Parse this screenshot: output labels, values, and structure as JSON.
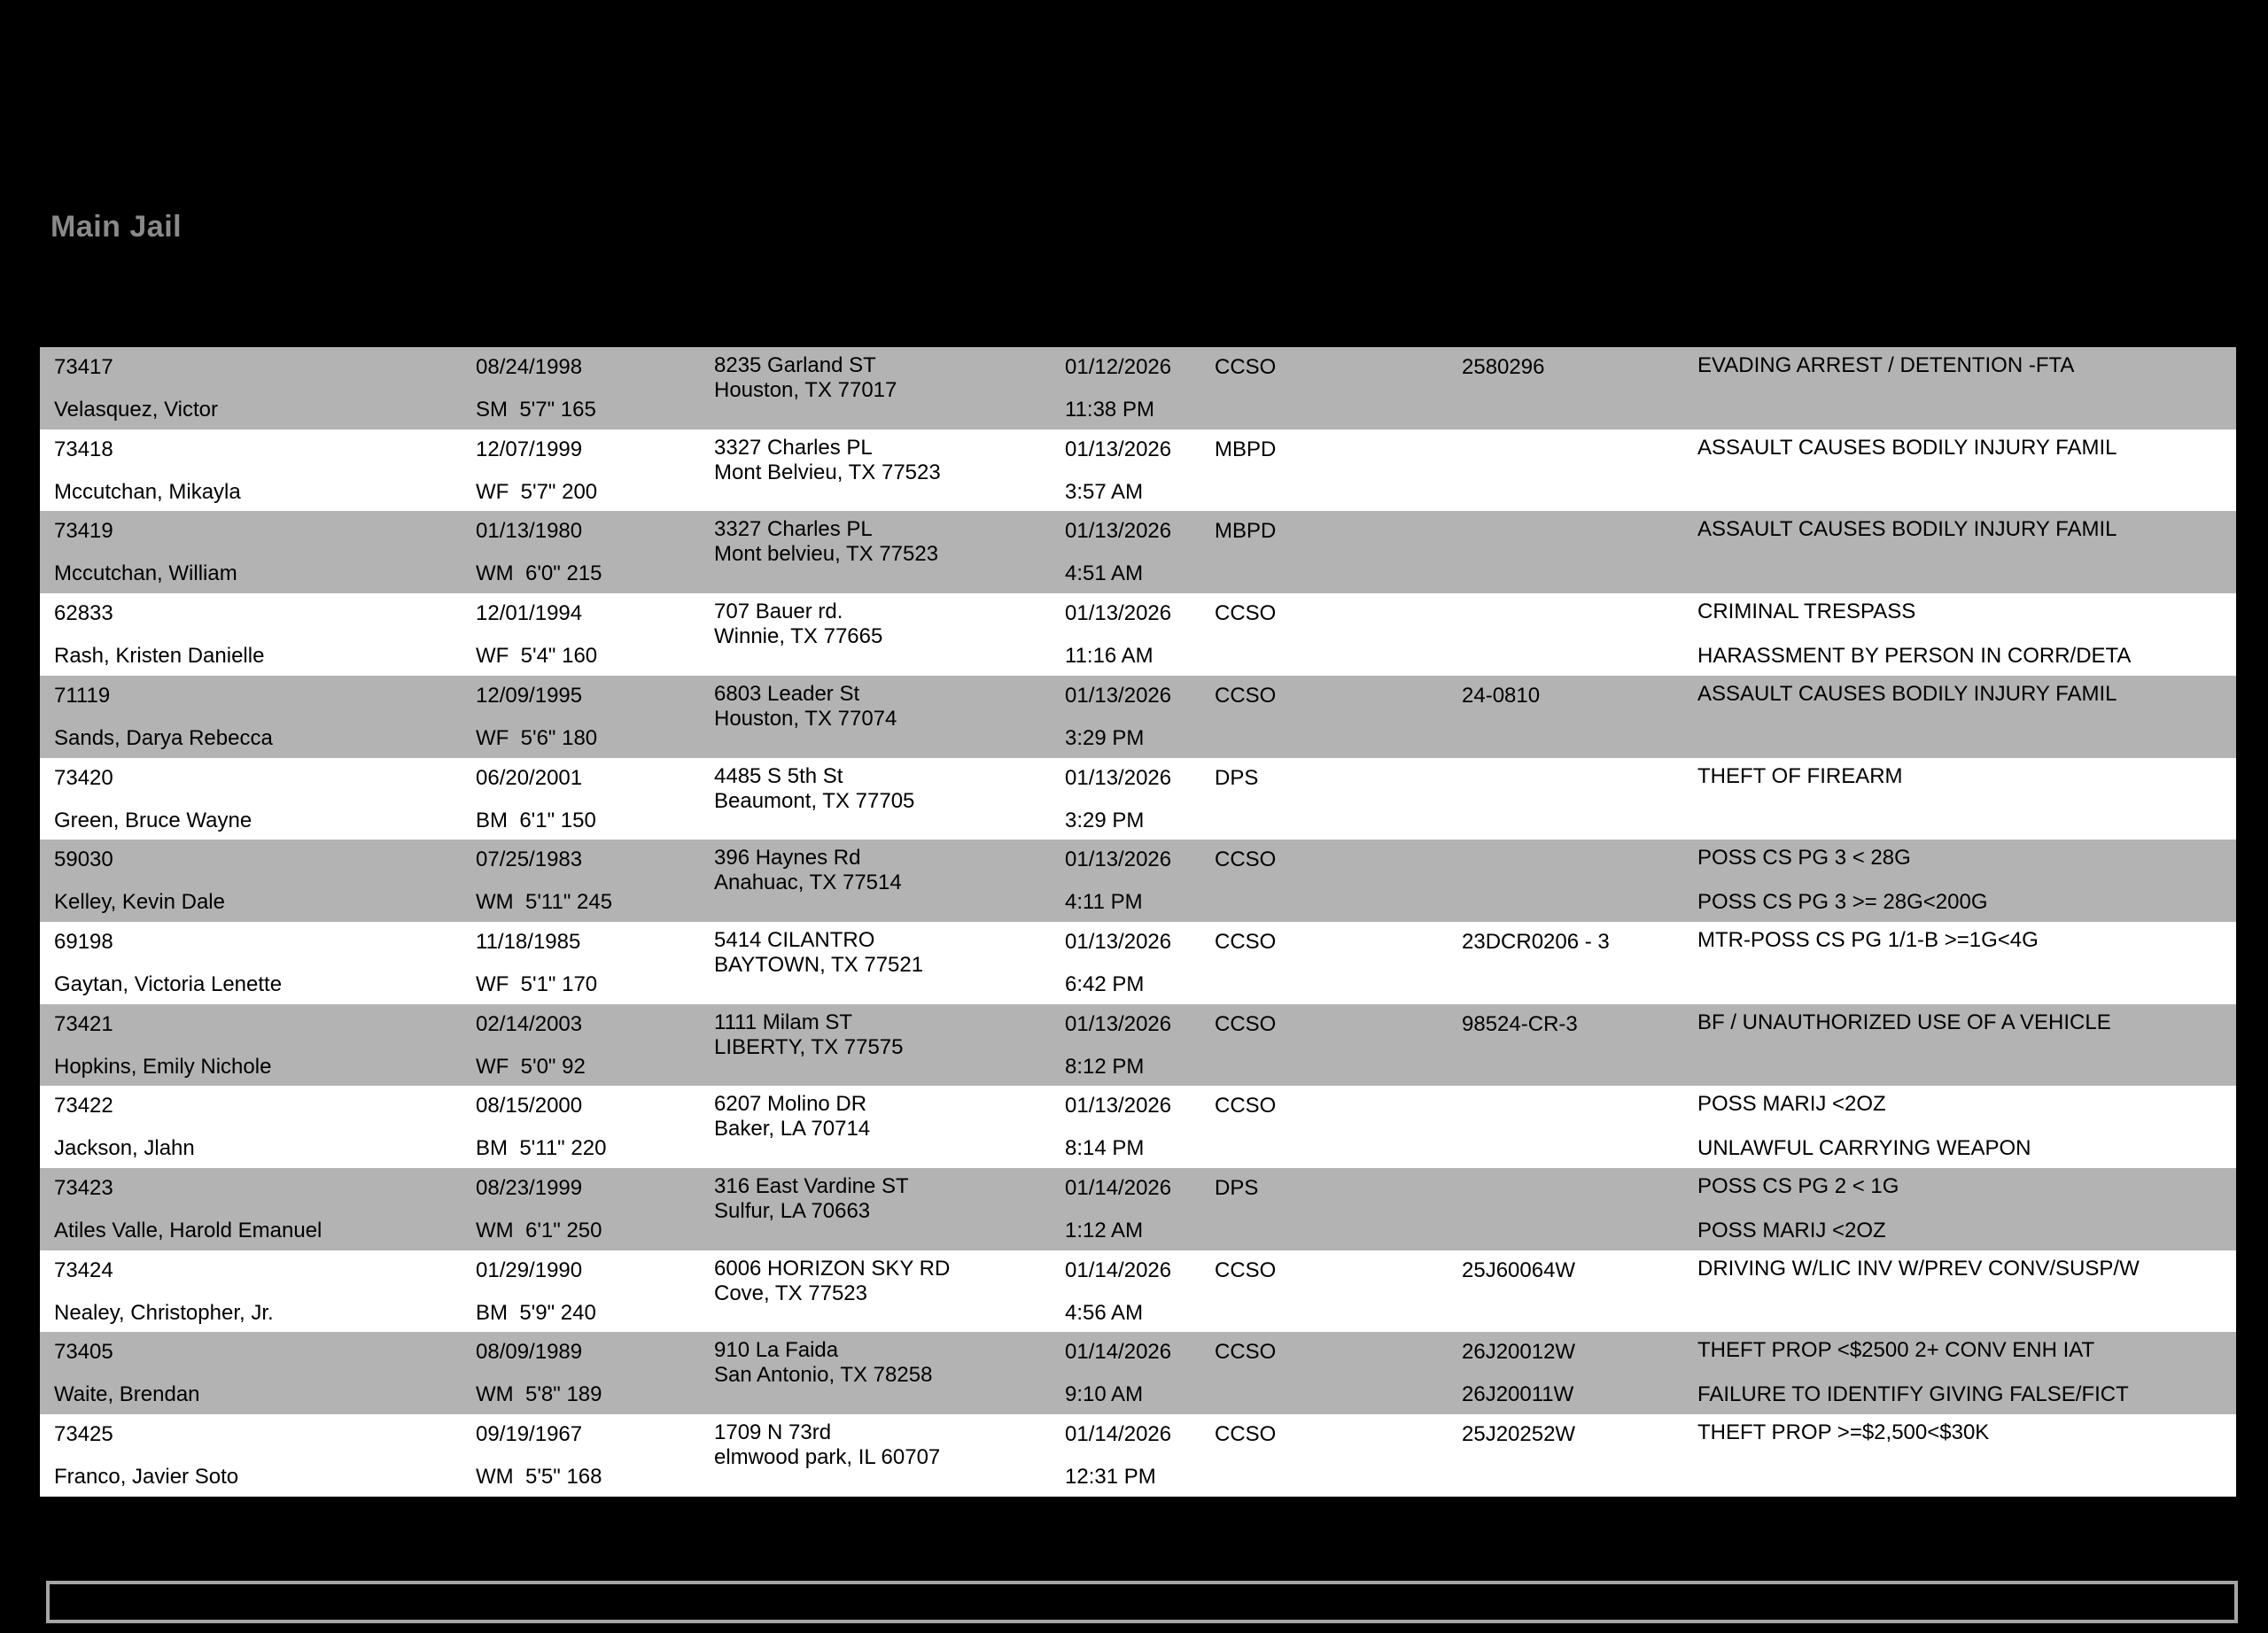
{
  "page": {
    "title": "Main Jail",
    "background_color": "#000000",
    "title_color": "#8a8a8a",
    "row_stripe_gray": "#b3b3b3",
    "row_stripe_white": "#ffffff",
    "footer_box_text": ""
  },
  "table": {
    "rows": [
      {
        "booking_no": "73417",
        "name": "Velasquez, Victor",
        "dob": "08/24/1998",
        "physical": "SM  5'7\" 165",
        "address1": "8235 Garland ST",
        "address2": "Houston, TX 77017",
        "booked_date": "01/12/2026",
        "booked_time": "11:38 PM",
        "agency": "CCSO",
        "case1": "2580296",
        "case2": "",
        "charge1": "EVADING ARREST / DETENTION -FTA",
        "charge2": ""
      },
      {
        "booking_no": "73418",
        "name": "Mccutchan, Mikayla",
        "dob": "12/07/1999",
        "physical": "WF  5'7\" 200",
        "address1": "3327 Charles PL",
        "address2": "Mont Belvieu, TX 77523",
        "booked_date": "01/13/2026",
        "booked_time": "3:57 AM",
        "agency": "MBPD",
        "case1": "",
        "case2": "",
        "charge1": "ASSAULT CAUSES BODILY INJURY FAMIL",
        "charge2": ""
      },
      {
        "booking_no": "73419",
        "name": "Mccutchan, William",
        "dob": "01/13/1980",
        "physical": "WM  6'0\" 215",
        "address1": "3327 Charles PL",
        "address2": "Mont belvieu, TX 77523",
        "booked_date": "01/13/2026",
        "booked_time": "4:51 AM",
        "agency": "MBPD",
        "case1": "",
        "case2": "",
        "charge1": "ASSAULT CAUSES BODILY INJURY FAMIL",
        "charge2": ""
      },
      {
        "booking_no": "62833",
        "name": "Rash, Kristen Danielle",
        "dob": "12/01/1994",
        "physical": "WF  5'4\" 160",
        "address1": "707 Bauer rd.",
        "address2": "Winnie, TX 77665",
        "booked_date": "01/13/2026",
        "booked_time": "11:16 AM",
        "agency": "CCSO",
        "case1": "",
        "case2": "",
        "charge1": "CRIMINAL TRESPASS",
        "charge2": "HARASSMENT BY PERSON IN CORR/DETA"
      },
      {
        "booking_no": "71119",
        "name": "Sands, Darya Rebecca",
        "dob": "12/09/1995",
        "physical": "WF  5'6\" 180",
        "address1": "6803 Leader St",
        "address2": "Houston, TX 77074",
        "booked_date": "01/13/2026",
        "booked_time": "3:29 PM",
        "agency": "CCSO",
        "case1": "24-0810",
        "case2": "",
        "charge1": "ASSAULT CAUSES BODILY INJURY FAMIL",
        "charge2": ""
      },
      {
        "booking_no": "73420",
        "name": "Green, Bruce Wayne",
        "dob": "06/20/2001",
        "physical": "BM  6'1\" 150",
        "address1": "4485 S 5th St",
        "address2": "Beaumont, TX 77705",
        "booked_date": "01/13/2026",
        "booked_time": "3:29 PM",
        "agency": "DPS",
        "case1": "",
        "case2": "",
        "charge1": "THEFT OF FIREARM",
        "charge2": ""
      },
      {
        "booking_no": "59030",
        "name": "Kelley, Kevin Dale",
        "dob": "07/25/1983",
        "physical": "WM  5'11\" 245",
        "address1": "396 Haynes Rd",
        "address2": "Anahuac, TX 77514",
        "booked_date": "01/13/2026",
        "booked_time": "4:11 PM",
        "agency": "CCSO",
        "case1": "",
        "case2": "",
        "charge1": "POSS CS PG 3 < 28G",
        "charge2": "POSS CS PG 3 >= 28G<200G"
      },
      {
        "booking_no": "69198",
        "name": "Gaytan, Victoria Lenette",
        "dob": "11/18/1985",
        "physical": "WF  5'1\" 170",
        "address1": "5414 CILANTRO",
        "address2": "BAYTOWN, TX 77521",
        "booked_date": "01/13/2026",
        "booked_time": "6:42 PM",
        "agency": "CCSO",
        "case1": "23DCR0206 - 3",
        "case2": "",
        "charge1": "MTR-POSS CS PG 1/1-B >=1G<4G",
        "charge2": ""
      },
      {
        "booking_no": "73421",
        "name": "Hopkins, Emily Nichole",
        "dob": "02/14/2003",
        "physical": "WF  5'0\" 92",
        "address1": "1111 Milam ST",
        "address2": "LIBERTY, TX 77575",
        "booked_date": "01/13/2026",
        "booked_time": "8:12 PM",
        "agency": "CCSO",
        "case1": "98524-CR-3",
        "case2": "",
        "charge1": "BF / UNAUTHORIZED USE OF A VEHICLE",
        "charge2": ""
      },
      {
        "booking_no": "73422",
        "name": "Jackson, Jlahn",
        "dob": "08/15/2000",
        "physical": "BM  5'11\" 220",
        "address1": "6207 Molino DR",
        "address2": "Baker, LA 70714",
        "booked_date": "01/13/2026",
        "booked_time": "8:14 PM",
        "agency": "CCSO",
        "case1": "",
        "case2": "",
        "charge1": "POSS MARIJ <2OZ",
        "charge2": "UNLAWFUL CARRYING WEAPON"
      },
      {
        "booking_no": "73423",
        "name": "Atiles Valle, Harold Emanuel",
        "dob": "08/23/1999",
        "physical": "WM  6'1\" 250",
        "address1": "316 East Vardine ST",
        "address2": "Sulfur, LA 70663",
        "booked_date": "01/14/2026",
        "booked_time": "1:12 AM",
        "agency": "DPS",
        "case1": "",
        "case2": "",
        "charge1": "POSS CS PG 2 < 1G",
        "charge2": "POSS MARIJ <2OZ"
      },
      {
        "booking_no": "73424",
        "name": "Nealey, Christopher, Jr.",
        "dob": "01/29/1990",
        "physical": "BM  5'9\" 240",
        "address1": "6006 HORIZON SKY RD",
        "address2": "Cove, TX 77523",
        "booked_date": "01/14/2026",
        "booked_time": "4:56 AM",
        "agency": "CCSO",
        "case1": "25J60064W",
        "case2": "",
        "charge1": "DRIVING W/LIC INV W/PREV CONV/SUSP/W",
        "charge2": ""
      },
      {
        "booking_no": "73405",
        "name": "Waite, Brendan",
        "dob": "08/09/1989",
        "physical": "WM  5'8\" 189",
        "address1": "910 La Faida",
        "address2": "San Antonio, TX 78258",
        "booked_date": "01/14/2026",
        "booked_time": "9:10 AM",
        "agency": "CCSO",
        "case1": "26J20012W",
        "case2": "26J20011W",
        "charge1": "THEFT PROP <$2500 2+ CONV ENH IAT",
        "charge2": "FAILURE TO IDENTIFY GIVING FALSE/FICT"
      },
      {
        "booking_no": "73425",
        "name": "Franco, Javier Soto",
        "dob": "09/19/1967",
        "physical": "WM  5'5\" 168",
        "address1": "1709 N 73rd",
        "address2": "elmwood park, IL 60707",
        "booked_date": "01/14/2026",
        "booked_time": "12:31 PM",
        "agency": "CCSO",
        "case1": "25J20252W",
        "case2": "",
        "charge1": "THEFT PROP >=$2,500<$30K",
        "charge2": ""
      }
    ]
  }
}
